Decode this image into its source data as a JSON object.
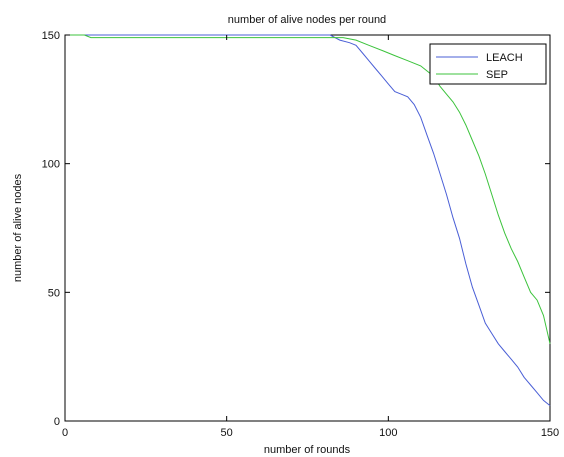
{
  "chart_data": {
    "type": "line",
    "title": "number of alive nodes per round",
    "xlabel": "number of rounds",
    "ylabel": "number of alive nodes",
    "xlim": [
      0,
      150
    ],
    "ylim": [
      0,
      150
    ],
    "xticks": [
      0,
      50,
      100,
      150
    ],
    "yticks": [
      0,
      50,
      100,
      150
    ],
    "grid": false,
    "legend_position": "top-right",
    "series": [
      {
        "name": "LEACH",
        "color": "#4a5fd6",
        "points": [
          [
            0,
            150
          ],
          [
            82,
            150
          ],
          [
            85,
            148
          ],
          [
            88,
            147
          ],
          [
            90,
            146
          ],
          [
            92,
            143
          ],
          [
            94,
            140
          ],
          [
            96,
            137
          ],
          [
            98,
            134
          ],
          [
            100,
            131
          ],
          [
            102,
            128
          ],
          [
            104,
            127
          ],
          [
            106,
            126
          ],
          [
            108,
            123
          ],
          [
            110,
            118
          ],
          [
            112,
            111
          ],
          [
            114,
            104
          ],
          [
            116,
            96
          ],
          [
            118,
            88
          ],
          [
            120,
            79
          ],
          [
            122,
            71
          ],
          [
            124,
            61
          ],
          [
            126,
            52
          ],
          [
            128,
            45
          ],
          [
            130,
            38
          ],
          [
            132,
            34
          ],
          [
            134,
            30
          ],
          [
            136,
            27
          ],
          [
            138,
            24
          ],
          [
            140,
            21
          ],
          [
            142,
            17
          ],
          [
            144,
            14
          ],
          [
            146,
            11
          ],
          [
            148,
            8
          ],
          [
            150,
            6
          ]
        ]
      },
      {
        "name": "SEP",
        "color": "#3cc33c",
        "points": [
          [
            0,
            150
          ],
          [
            6,
            150
          ],
          [
            8,
            149
          ],
          [
            86,
            149
          ],
          [
            90,
            148
          ],
          [
            94,
            146
          ],
          [
            98,
            144
          ],
          [
            102,
            142
          ],
          [
            106,
            140
          ],
          [
            110,
            138
          ],
          [
            114,
            134
          ],
          [
            116,
            130
          ],
          [
            118,
            127
          ],
          [
            120,
            124
          ],
          [
            122,
            120
          ],
          [
            124,
            115
          ],
          [
            126,
            109
          ],
          [
            128,
            103
          ],
          [
            130,
            96
          ],
          [
            132,
            88
          ],
          [
            134,
            80
          ],
          [
            136,
            73
          ],
          [
            138,
            67
          ],
          [
            140,
            62
          ],
          [
            142,
            56
          ],
          [
            144,
            50
          ],
          [
            146,
            47
          ],
          [
            148,
            41
          ],
          [
            150,
            30
          ]
        ]
      }
    ]
  }
}
